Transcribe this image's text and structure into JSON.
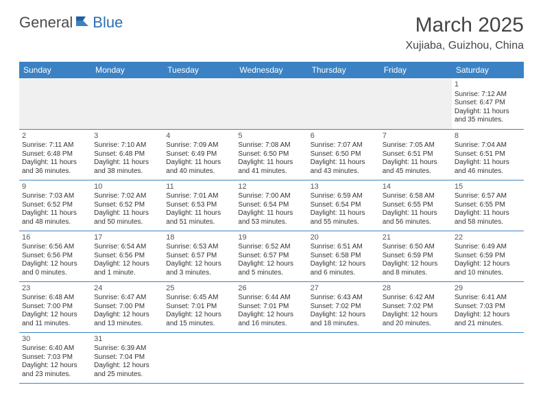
{
  "logo": {
    "text1": "General",
    "text2": "Blue",
    "color1": "#4a4a4a",
    "color2": "#2a6fb5"
  },
  "title": "March 2025",
  "location": "Xujiaba, Guizhou, China",
  "colors": {
    "header_bg": "#3b82c4",
    "header_text": "#ffffff",
    "cell_text": "#333333",
    "border": "#3b82c4",
    "empty_bg": "#f0f0f0"
  },
  "weekdays": [
    "Sunday",
    "Monday",
    "Tuesday",
    "Wednesday",
    "Thursday",
    "Friday",
    "Saturday"
  ],
  "weeks": [
    [
      null,
      null,
      null,
      null,
      null,
      null,
      {
        "n": "1",
        "sr": "7:12 AM",
        "ss": "6:47 PM",
        "dh": "11",
        "dm": "35"
      }
    ],
    [
      {
        "n": "2",
        "sr": "7:11 AM",
        "ss": "6:48 PM",
        "dh": "11",
        "dm": "36"
      },
      {
        "n": "3",
        "sr": "7:10 AM",
        "ss": "6:48 PM",
        "dh": "11",
        "dm": "38"
      },
      {
        "n": "4",
        "sr": "7:09 AM",
        "ss": "6:49 PM",
        "dh": "11",
        "dm": "40"
      },
      {
        "n": "5",
        "sr": "7:08 AM",
        "ss": "6:50 PM",
        "dh": "11",
        "dm": "41"
      },
      {
        "n": "6",
        "sr": "7:07 AM",
        "ss": "6:50 PM",
        "dh": "11",
        "dm": "43"
      },
      {
        "n": "7",
        "sr": "7:05 AM",
        "ss": "6:51 PM",
        "dh": "11",
        "dm": "45"
      },
      {
        "n": "8",
        "sr": "7:04 AM",
        "ss": "6:51 PM",
        "dh": "11",
        "dm": "46"
      }
    ],
    [
      {
        "n": "9",
        "sr": "7:03 AM",
        "ss": "6:52 PM",
        "dh": "11",
        "dm": "48"
      },
      {
        "n": "10",
        "sr": "7:02 AM",
        "ss": "6:52 PM",
        "dh": "11",
        "dm": "50"
      },
      {
        "n": "11",
        "sr": "7:01 AM",
        "ss": "6:53 PM",
        "dh": "11",
        "dm": "51"
      },
      {
        "n": "12",
        "sr": "7:00 AM",
        "ss": "6:54 PM",
        "dh": "11",
        "dm": "53"
      },
      {
        "n": "13",
        "sr": "6:59 AM",
        "ss": "6:54 PM",
        "dh": "11",
        "dm": "55"
      },
      {
        "n": "14",
        "sr": "6:58 AM",
        "ss": "6:55 PM",
        "dh": "11",
        "dm": "56"
      },
      {
        "n": "15",
        "sr": "6:57 AM",
        "ss": "6:55 PM",
        "dh": "11",
        "dm": "58"
      }
    ],
    [
      {
        "n": "16",
        "sr": "6:56 AM",
        "ss": "6:56 PM",
        "dh": "12",
        "dm": "0"
      },
      {
        "n": "17",
        "sr": "6:54 AM",
        "ss": "6:56 PM",
        "dh": "12",
        "dm": "1"
      },
      {
        "n": "18",
        "sr": "6:53 AM",
        "ss": "6:57 PM",
        "dh": "12",
        "dm": "3"
      },
      {
        "n": "19",
        "sr": "6:52 AM",
        "ss": "6:57 PM",
        "dh": "12",
        "dm": "5"
      },
      {
        "n": "20",
        "sr": "6:51 AM",
        "ss": "6:58 PM",
        "dh": "12",
        "dm": "6"
      },
      {
        "n": "21",
        "sr": "6:50 AM",
        "ss": "6:59 PM",
        "dh": "12",
        "dm": "8"
      },
      {
        "n": "22",
        "sr": "6:49 AM",
        "ss": "6:59 PM",
        "dh": "12",
        "dm": "10"
      }
    ],
    [
      {
        "n": "23",
        "sr": "6:48 AM",
        "ss": "7:00 PM",
        "dh": "12",
        "dm": "11"
      },
      {
        "n": "24",
        "sr": "6:47 AM",
        "ss": "7:00 PM",
        "dh": "12",
        "dm": "13"
      },
      {
        "n": "25",
        "sr": "6:45 AM",
        "ss": "7:01 PM",
        "dh": "12",
        "dm": "15"
      },
      {
        "n": "26",
        "sr": "6:44 AM",
        "ss": "7:01 PM",
        "dh": "12",
        "dm": "16"
      },
      {
        "n": "27",
        "sr": "6:43 AM",
        "ss": "7:02 PM",
        "dh": "12",
        "dm": "18"
      },
      {
        "n": "28",
        "sr": "6:42 AM",
        "ss": "7:02 PM",
        "dh": "12",
        "dm": "20"
      },
      {
        "n": "29",
        "sr": "6:41 AM",
        "ss": "7:03 PM",
        "dh": "12",
        "dm": "21"
      }
    ],
    [
      {
        "n": "30",
        "sr": "6:40 AM",
        "ss": "7:03 PM",
        "dh": "12",
        "dm": "23"
      },
      {
        "n": "31",
        "sr": "6:39 AM",
        "ss": "7:04 PM",
        "dh": "12",
        "dm": "25"
      },
      null,
      null,
      null,
      null,
      null
    ]
  ],
  "labels": {
    "sunrise": "Sunrise:",
    "sunset": "Sunset:",
    "daylight1": "Daylight:",
    "hours": "hours",
    "and": "and",
    "minutes_suffix": ".",
    "minute_word_singular": "minute",
    "minute_word_plural": "minutes"
  }
}
